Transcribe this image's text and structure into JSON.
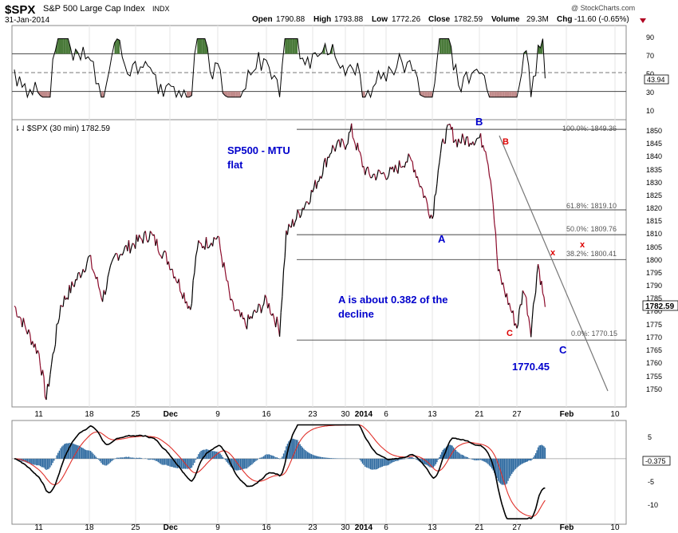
{
  "header": {
    "symbol": "$SPX",
    "name": "S&P 500 Large Cap Index",
    "exchange": "INDX",
    "date": "31-Jan-2014",
    "watermark": "@ StockCharts.com",
    "open_label": "Open",
    "open": "1790.88",
    "high_label": "High",
    "high": "1793.88",
    "low_label": "Low",
    "low": "1772.26",
    "close_label": "Close",
    "close": "1782.59",
    "volume_label": "Volume",
    "volume": "29.3M",
    "chg_label": "Chg",
    "chg": "-11.60 (-0.65%)"
  },
  "colors": {
    "price_up": "#000000",
    "price_down": "#8b0a2a",
    "annot_blue": "#0000cc",
    "annot_red": "#dd0000",
    "rsi_over": "#4a7a3a",
    "rsi_under": "#c08a8a",
    "macd_hist": "#2e6aa0",
    "signal": "#e0302a",
    "fib_line": "#333333"
  },
  "x_labels": [
    "11",
    "18",
    "25",
    "Dec",
    "9",
    "16",
    "23",
    "30",
    "2014",
    "6",
    "13",
    "21",
    "27",
    "Feb",
    "10"
  ],
  "chart_data": [
    {
      "type": "line",
      "panel": "RSI",
      "ylim": [
        0,
        100
      ],
      "y_ticks": [
        "90",
        "70",
        "50",
        "30",
        "10"
      ],
      "last_value_label": "43.94",
      "guide_levels": [
        70,
        50,
        30
      ],
      "value_approx": {
        "min": 24,
        "max": 86,
        "last": 43.94
      }
    },
    {
      "type": "line",
      "panel": "price",
      "legend": "$SPX (30 min) 1782.59",
      "ylim": [
        1745,
        1853
      ],
      "y_ticks": [
        "1850",
        "1845",
        "1840",
        "1835",
        "1830",
        "1825",
        "1820",
        "1815",
        "1810",
        "1805",
        "1800",
        "1795",
        "1790",
        "1785",
        "1780",
        "1775",
        "1770",
        "1765",
        "1760",
        "1755",
        "1750"
      ],
      "last_value_label": "1782.59",
      "x_dates_shown": [
        "Nov 11",
        "Nov 18",
        "Nov 25",
        "Dec",
        "Dec 9",
        "Dec 16",
        "Dec 23",
        "Dec 30",
        "2014",
        "Jan 6",
        "Jan 13",
        "Jan 21",
        "Jan 27",
        "Feb",
        "Feb 10"
      ],
      "path_keypoints": [
        {
          "x": "Nov 8",
          "y": 1783
        },
        {
          "x": "Nov 11",
          "y": 1765
        },
        {
          "x": "Nov 12",
          "y": 1748
        },
        {
          "x": "Nov 14",
          "y": 1783
        },
        {
          "x": "Nov 18",
          "y": 1801
        },
        {
          "x": "Nov 20",
          "y": 1786
        },
        {
          "x": "Nov 22",
          "y": 1802
        },
        {
          "x": "Nov 26",
          "y": 1808
        },
        {
          "x": "Nov 28",
          "y": 1810
        },
        {
          "x": "Dec 2",
          "y": 1799
        },
        {
          "x": "Dec 5",
          "y": 1782
        },
        {
          "x": "Dec 6",
          "y": 1805
        },
        {
          "x": "Dec 9",
          "y": 1809
        },
        {
          "x": "Dec 11",
          "y": 1783
        },
        {
          "x": "Dec 13",
          "y": 1776
        },
        {
          "x": "Dec 16",
          "y": 1785
        },
        {
          "x": "Dec 17",
          "y": 1780
        },
        {
          "x": "Dec 18",
          "y": 1774
        },
        {
          "x": "Dec 19",
          "y": 1810
        },
        {
          "x": "Dec 23",
          "y": 1826
        },
        {
          "x": "Dec 27",
          "y": 1842
        },
        {
          "x": "Dec 30",
          "y": 1844
        },
        {
          "x": "Dec 31",
          "y": 1849
        },
        {
          "x": "Jan 2",
          "y": 1835
        },
        {
          "x": "Jan 3",
          "y": 1832
        },
        {
          "x": "Jan 7",
          "y": 1833
        },
        {
          "x": "Jan 9",
          "y": 1838
        },
        {
          "x": "Jan 10",
          "y": 1837
        },
        {
          "x": "Jan 13",
          "y": 1816
        },
        {
          "x": "Jan 14",
          "y": 1835
        },
        {
          "x": "Jan 15",
          "y": 1846
        },
        {
          "x": "Jan 16",
          "y": 1850
        },
        {
          "x": "Jan 17",
          "y": 1845
        },
        {
          "x": "Jan 21",
          "y": 1846
        },
        {
          "x": "Jan 22",
          "y": 1843
        },
        {
          "x": "Jan 23",
          "y": 1828
        },
        {
          "x": "Jan 24",
          "y": 1796
        },
        {
          "x": "Jan 27",
          "y": 1775
        },
        {
          "x": "Jan 28",
          "y": 1790
        },
        {
          "x": "Jan 29",
          "y": 1774
        },
        {
          "x": "Jan 30",
          "y": 1799
        },
        {
          "x": "Jan 31",
          "y": 1782.59
        }
      ],
      "horizontal_levels": [
        {
          "value": 1849.36,
          "label": "100.0%: 1849.36"
        },
        {
          "value": 1819.1,
          "label": "61.8%: 1819.10"
        },
        {
          "value": 1809.76,
          "label": "50.0%: 1809.76"
        },
        {
          "value": 1800.41,
          "label": "38.2%: 1800.41"
        },
        {
          "value": 1770.15,
          "label": "0.0%: 1770.15"
        }
      ],
      "annotations": {
        "title": "SP500 - MTU",
        "subtitle": "flat",
        "note_line1": "A is about 0.382 of the",
        "note_line2": "decline",
        "low_value": "1770.45",
        "waves": [
          "A",
          "B",
          "C"
        ],
        "minor_waves": [
          "B",
          "C",
          "x",
          "x"
        ]
      }
    },
    {
      "type": "line",
      "panel": "MACD",
      "ylim": [
        -12,
        7
      ],
      "y_ticks": [
        "5",
        "-5",
        "-10"
      ],
      "last_value_label": "-0.375",
      "series": [],
      "value_approx": {
        "min": -11,
        "max": 6.2
      }
    }
  ]
}
